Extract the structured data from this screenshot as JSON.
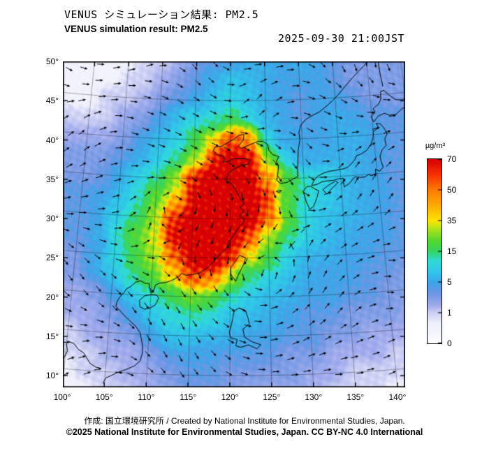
{
  "header": {
    "title_jp": "VENUS シミュレーション結果: PM2.5",
    "title_en": "VENUS simulation result: PM2.5",
    "timestamp": "2025-09-30 21:00JST"
  },
  "footer": {
    "credit_line": "作成: 国立環境研究所 / Created by National Institute for Environmental Studies, Japan.",
    "license_line": "©2025 National Institute for Environmental Studies, Japan. CC BY-NC 4.0 International"
  },
  "chart_data": {
    "type": "heatmap",
    "title": "VENUS simulation result: PM2.5",
    "variable": "PM2.5 concentration",
    "valid_time": "2025-09-30 21:00JST",
    "wind_overlay": true,
    "axes": {
      "lon_tick_labels": [
        "100°",
        "105°",
        "110°",
        "115°",
        "120°",
        "125°",
        "130°",
        "135°",
        "140°"
      ],
      "lon_tick_values": [
        100,
        105,
        110,
        115,
        120,
        125,
        130,
        135,
        140
      ],
      "lat_tick_labels": [
        "50°",
        "45°",
        "40°",
        "35°",
        "30°",
        "25°",
        "20°",
        "15°",
        "10°"
      ],
      "lat_tick_values": [
        50,
        45,
        40,
        35,
        30,
        25,
        20,
        15,
        10
      ],
      "lon_range": [
        100,
        141
      ],
      "lat_range": [
        8.5,
        50
      ],
      "grid_on": true
    },
    "colorbar": {
      "label": "µg/m³",
      "ticks": [
        70,
        50,
        35,
        15,
        5,
        1,
        0
      ],
      "scale": {
        "values": [
          0,
          0.7,
          1,
          2,
          3.5,
          5,
          8,
          12,
          15,
          22,
          30,
          35,
          42,
          50,
          60,
          70
        ],
        "colors": [
          "#ffffff",
          "#eceefb",
          "#cdd1f4",
          "#9fabec",
          "#7097e4",
          "#3fa3e8",
          "#30c4ea",
          "#2fdcd8",
          "#35d465",
          "#55d82e",
          "#b2e41e",
          "#ffe400",
          "#ffb000",
          "#ff7c00",
          "#f63300",
          "#d80000"
        ]
      }
    },
    "grid": {
      "lon_start": 100,
      "lon_step": 2.5,
      "lat_start": 50,
      "lat_step": -2.5,
      "units": "µg/m³",
      "values": [
        [
          0.5,
          0.5,
          0.5,
          1,
          1,
          2,
          3,
          4,
          5,
          6,
          6,
          5,
          6,
          5,
          4,
          3,
          3,
          3
        ],
        [
          0.5,
          0.5,
          1,
          1,
          2,
          3,
          4,
          6,
          8,
          7,
          6,
          5,
          5,
          5,
          4,
          3,
          3,
          3
        ],
        [
          0.5,
          1,
          1,
          2,
          3,
          4,
          6,
          9,
          10,
          8,
          6,
          5,
          4,
          5,
          5,
          4,
          3,
          3
        ],
        [
          1,
          1,
          2,
          3,
          5,
          7,
          10,
          14,
          16,
          10,
          7,
          5,
          4,
          5,
          6,
          5,
          4,
          4
        ],
        [
          2,
          2,
          3,
          5,
          7,
          10,
          18,
          35,
          55,
          45,
          12,
          6,
          5,
          5,
          6,
          6,
          5,
          4
        ],
        [
          3,
          3,
          4,
          6,
          9,
          14,
          30,
          65,
          75,
          70,
          25,
          10,
          6,
          6,
          6,
          6,
          5,
          4
        ],
        [
          3,
          4,
          6,
          9,
          14,
          28,
          60,
          75,
          75,
          75,
          45,
          18,
          12,
          10,
          8,
          6,
          5,
          4
        ],
        [
          4,
          5,
          8,
          12,
          22,
          45,
          72,
          75,
          75,
          75,
          60,
          22,
          12,
          9,
          7,
          6,
          5,
          4
        ],
        [
          4,
          5,
          9,
          15,
          28,
          60,
          75,
          75,
          75,
          75,
          50,
          20,
          11,
          8,
          7,
          6,
          5,
          4
        ],
        [
          4,
          6,
          12,
          20,
          32,
          68,
          75,
          75,
          75,
          55,
          28,
          14,
          9,
          7,
          6,
          5,
          5,
          4
        ],
        [
          3,
          5,
          11,
          18,
          28,
          55,
          75,
          75,
          65,
          35,
          16,
          10,
          7,
          6,
          5,
          5,
          4,
          4
        ],
        [
          3,
          5,
          8,
          13,
          20,
          38,
          55,
          45,
          28,
          15,
          9,
          7,
          6,
          5,
          5,
          4,
          4,
          3
        ],
        [
          2,
          3,
          5,
          8,
          12,
          18,
          24,
          20,
          13,
          9,
          7,
          6,
          5,
          5,
          4,
          4,
          3,
          3
        ],
        [
          2,
          2,
          3,
          5,
          8,
          11,
          13,
          11,
          8,
          7,
          6,
          5,
          4,
          4,
          3,
          3,
          3,
          2
        ],
        [
          1,
          2,
          2,
          3,
          5,
          7,
          8,
          7,
          6,
          5,
          5,
          4,
          4,
          3,
          3,
          2,
          2,
          2
        ],
        [
          1,
          1,
          2,
          2,
          3,
          4,
          5,
          5,
          4,
          4,
          4,
          3,
          3,
          2,
          2,
          2,
          1,
          1
        ],
        [
          0.5,
          1,
          1,
          2,
          2,
          3,
          4,
          4,
          3,
          3,
          3,
          3,
          2,
          2,
          1,
          1,
          1,
          1
        ],
        [
          0.5,
          0.5,
          1,
          1,
          2,
          2,
          3,
          3,
          3,
          2,
          2,
          2,
          2,
          1,
          1,
          1,
          0.5,
          0.5
        ]
      ]
    }
  }
}
